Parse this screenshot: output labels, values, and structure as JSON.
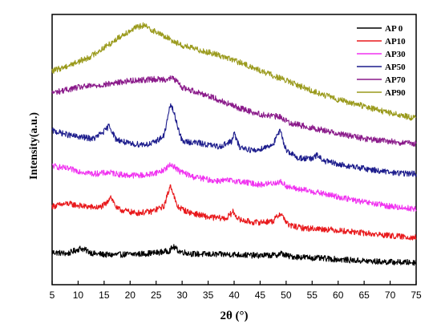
{
  "chart_data": {
    "type": "line",
    "title": "",
    "xlabel": "2θ (°)",
    "ylabel": "Intensity(a.u.)",
    "xlim": [
      5,
      75
    ],
    "xticks": [
      5,
      10,
      15,
      20,
      25,
      30,
      35,
      40,
      45,
      50,
      55,
      60,
      65,
      70,
      75
    ],
    "y_ticks_shown": false,
    "grid": false,
    "legend_position": "top-right",
    "series": [
      {
        "name": "AP 0",
        "color": "#000000",
        "x": [
          5,
          8,
          10.5,
          13,
          16,
          19,
          22,
          25,
          27.5,
          28.3,
          29.5,
          32,
          36,
          40,
          44,
          48,
          49,
          50.5,
          53,
          58,
          63,
          68,
          72,
          75
        ],
        "y": [
          12,
          11.5,
          13.5,
          11.5,
          11,
          11.2,
          11.4,
          11.8,
          12.5,
          14,
          12.3,
          11.4,
          11.2,
          11.2,
          10.8,
          10.9,
          11.6,
          10.5,
          10.2,
          9.6,
          9.0,
          8.5,
          8.3,
          8.2
        ]
      },
      {
        "name": "AP10",
        "color": "#e8191c",
        "x": [
          5,
          8,
          11,
          14,
          15.5,
          16.2,
          17.5,
          21,
          24,
          26.5,
          27.8,
          29,
          31,
          35,
          38.5,
          39.8,
          41,
          44,
          47.5,
          48.9,
          50.5,
          53,
          58,
          63,
          68,
          72,
          75
        ],
        "y": [
          29,
          30,
          29,
          28.5,
          30,
          33,
          28,
          26.5,
          27,
          29,
          37,
          29,
          27,
          25,
          24.5,
          27,
          24,
          23,
          23.5,
          26.5,
          22,
          21,
          20.5,
          19.5,
          18.5,
          17.8,
          17.5
        ]
      },
      {
        "name": "AP30",
        "color": "#f032f0",
        "x": [
          5,
          9,
          13,
          16,
          19,
          23,
          26,
          28,
          29.5,
          32,
          36,
          40,
          45,
          49,
          50.5,
          55,
          60,
          65,
          70,
          75
        ],
        "y": [
          44,
          42.5,
          41,
          41.5,
          40.5,
          40.5,
          42,
          44.5,
          42,
          40,
          38.5,
          38.5,
          37,
          38,
          36,
          34.5,
          32.5,
          30.5,
          29,
          28
        ]
      },
      {
        "name": "AP50",
        "color": "#1c1c8c",
        "x": [
          5,
          9,
          13,
          15.2,
          16,
          17.2,
          20,
          24,
          26.5,
          27.8,
          28.5,
          30,
          33,
          37,
          39.5,
          40,
          41,
          44,
          47.5,
          48.8,
          50,
          52,
          55,
          56,
          57,
          60,
          65,
          70,
          75
        ],
        "y": [
          57,
          55,
          54,
          57,
          59,
          54,
          52,
          52,
          55,
          67,
          63,
          53,
          52.5,
          51,
          53,
          56,
          51,
          49.5,
          52,
          57,
          50,
          47,
          46.5,
          48,
          46,
          44.5,
          43,
          41.5,
          41
        ]
      },
      {
        "name": "AP70",
        "color": "#8a1a8a",
        "x": [
          5,
          10,
          15,
          20,
          24,
          27,
          28.3,
          30,
          35,
          40,
          45,
          49,
          50.5,
          55,
          60,
          65,
          70,
          75
        ],
        "y": [
          71,
          73,
          74,
          75.5,
          76,
          76,
          76.5,
          73,
          70,
          66,
          63,
          62,
          60,
          58,
          56,
          54,
          53,
          52
        ]
      },
      {
        "name": "AP90",
        "color": "#9a9a1c",
        "x": [
          5,
          8,
          12,
          16,
          19,
          21,
          22.5,
          24,
          26,
          28,
          30,
          33,
          37,
          40,
          44,
          48,
          52,
          56,
          60,
          65,
          70,
          75
        ],
        "y": [
          79,
          81,
          84,
          89,
          93,
          95,
          96,
          94.5,
          92.5,
          90.5,
          88.5,
          87,
          85,
          83,
          80,
          77,
          74,
          71,
          68.5,
          66,
          63.5,
          61.5
        ]
      }
    ]
  }
}
